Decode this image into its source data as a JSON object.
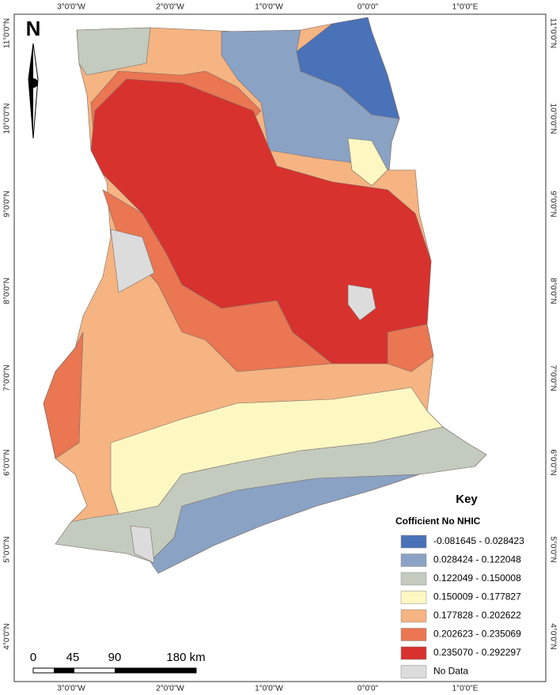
{
  "north_arrow": "N",
  "graticule": {
    "longitude": [
      "3°0'0\"W",
      "2°0'0\"W",
      "1°0'0\"W",
      "0°0'0\"",
      "1°0'0\"E"
    ],
    "latitude": [
      "11°0'0\"N",
      "10°0'0\"N",
      "9°0'0\"N",
      "8°0'0\"N",
      "7°0'0\"N",
      "6°0'0\"N",
      "5°0'0\"N",
      "4°0'0\"N"
    ]
  },
  "legend": {
    "title": "Key",
    "subtitle": "Cofficient No NHIC",
    "items": [
      {
        "label": "-0.081645 - 0.028423",
        "color": "#4a72b8"
      },
      {
        "label": "0.028424 - 0.122048",
        "color": "#8aa2c4"
      },
      {
        "label": "0.122049 - 0.150008",
        "color": "#c3cbbf"
      },
      {
        "label": "0.150009 - 0.177827",
        "color": "#fdf8c2"
      },
      {
        "label": "0.177828 - 0.202622",
        "color": "#f5b482"
      },
      {
        "label": "0.202623 - 0.235069",
        "color": "#ea7652"
      },
      {
        "label": "0.235070 - 0.292297",
        "color": "#d8322e"
      },
      {
        "label": "No Data",
        "color": "#dcdcdc"
      }
    ]
  },
  "scale_bar": {
    "labels": [
      "0",
      "45",
      "90",
      "180 km"
    ]
  }
}
